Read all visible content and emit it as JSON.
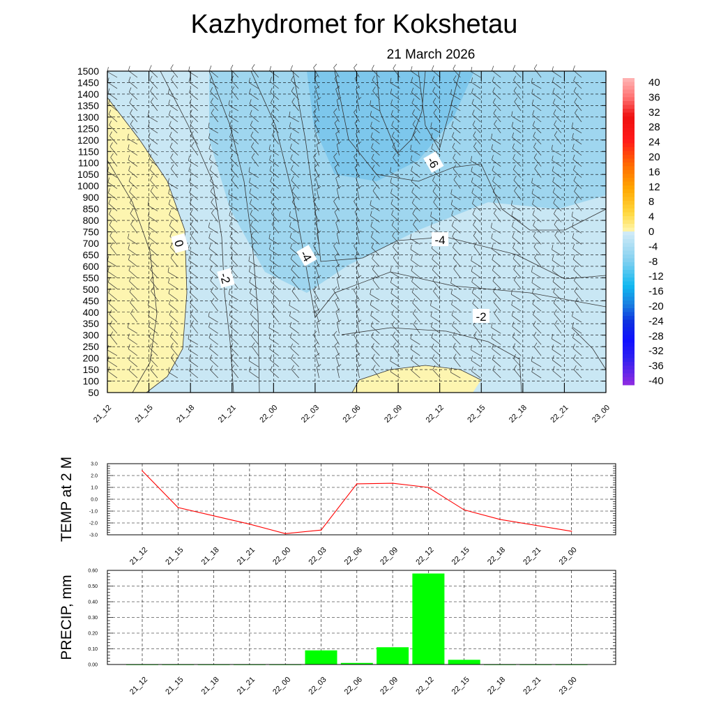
{
  "title": "Kazhydromet  for Kokshetau",
  "date": "21 March 2026",
  "colors": {
    "warm_fill": "#fdf5b0",
    "cool_fill_light": "#c9e7f4",
    "cool_fill_mid": "#9fd6ef",
    "cool_fill_deep": "#7dc7ec",
    "temp_line": "#ff0000",
    "precip_bar": "#00ff00"
  },
  "chart_data": [
    {
      "type": "heatmap",
      "name": "vertical-profile",
      "categories": [
        "21_12",
        "21_15",
        "21_18",
        "21_21",
        "22_00",
        "22_03",
        "22_06",
        "22_09",
        "22_12",
        "22_15",
        "22_18",
        "22_21",
        "23_00"
      ],
      "y_ticks": [
        1500,
        1450,
        1400,
        1350,
        1300,
        1250,
        1200,
        1150,
        1100,
        1050,
        1000,
        900,
        850,
        800,
        750,
        700,
        650,
        600,
        550,
        500,
        450,
        400,
        350,
        300,
        250,
        200,
        150,
        100,
        50
      ],
      "contour_labels": [
        "0",
        "-2",
        "-4",
        "-6",
        "-4",
        "-2"
      ],
      "colorbar": {
        "labels": [
          "40",
          "36",
          "32",
          "28",
          "24",
          "20",
          "16",
          "12",
          "8",
          "4",
          "0",
          "-4",
          "-8",
          "-12",
          "-16",
          "-20",
          "-24",
          "-28",
          "-32",
          "-36",
          "-40"
        ],
        "range": [
          -40,
          40
        ]
      }
    },
    {
      "type": "line",
      "name": "temp-2m",
      "ylabel": "TEMP at 2 M",
      "categories": [
        "21_12",
        "21_15",
        "21_18",
        "21_21",
        "22_00",
        "22_03",
        "22_06",
        "22_09",
        "22_12",
        "22_15",
        "22_18",
        "22_21",
        "23_00"
      ],
      "values": [
        2.4,
        -0.7,
        -1.4,
        -2.1,
        -2.9,
        -2.6,
        1.3,
        1.35,
        1.0,
        -0.9,
        -1.7,
        -2.2,
        -2.7
      ],
      "ylim": [
        -3.0,
        3.0
      ],
      "y_ticks": [
        "3.0",
        "2.0",
        "1.0",
        "0.0",
        "-1.0",
        "-2.0",
        "-3.0"
      ]
    },
    {
      "type": "bar",
      "name": "precip",
      "ylabel": "PRECIP, mm",
      "categories": [
        "21_12",
        "21_15",
        "21_18",
        "21_21",
        "22_00",
        "22_03",
        "22_06",
        "22_09",
        "22_12",
        "22_15",
        "22_18",
        "22_21",
        "23_00"
      ],
      "values": [
        0,
        0,
        0,
        0,
        0,
        0.09,
        0.01,
        0.11,
        0.58,
        0.03,
        0,
        0,
        0
      ],
      "ylim": [
        0,
        0.6
      ],
      "y_ticks": [
        "0.60",
        "0.50",
        "0.40",
        "0.30",
        "0.20",
        "0.10",
        "0.00"
      ]
    }
  ]
}
